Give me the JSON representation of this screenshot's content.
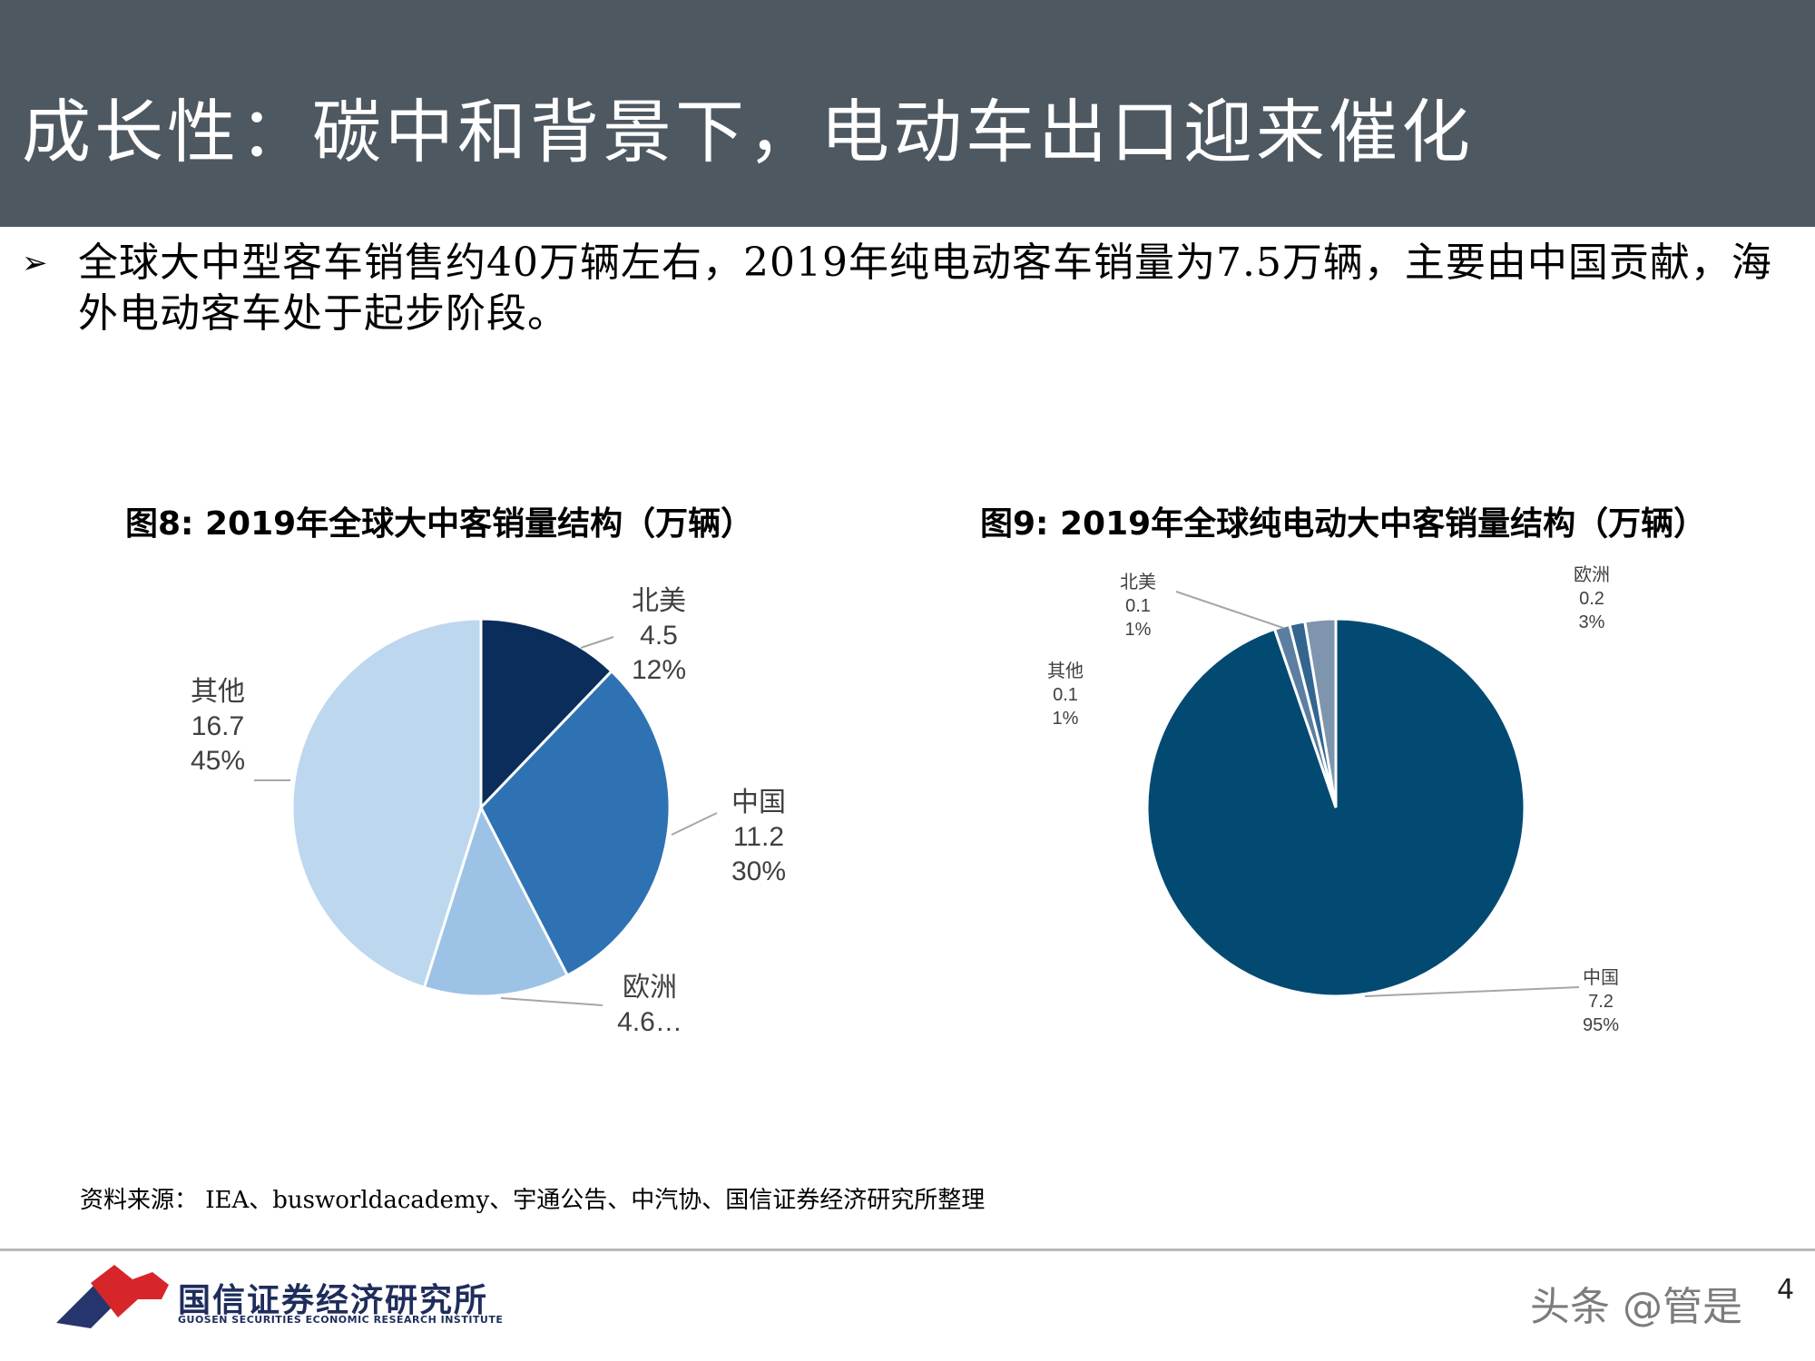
{
  "header": {
    "title": "成长性：碳中和背景下，电动车出口迎来催化"
  },
  "bullet": {
    "icon": "➢",
    "text": "全球大中型客车销售约40万辆左右，2019年纯电动客车销量为7.5万辆，主要由中国贡献，海外电动客车处于起步阶段。"
  },
  "charts": {
    "chart1_title": "图8:   2019年全球大中客销量结构（万辆）",
    "chart2_title": "图9:   2019年全球纯电动大中客销量结构（万辆）"
  },
  "chart_data": [
    {
      "type": "pie",
      "title": "2019年全球大中客销量结构（万辆）",
      "slices": [
        {
          "name": "北美",
          "value": 4.5,
          "value_label": "4.5",
          "pct_label": "12%",
          "color": "#0b2d5b"
        },
        {
          "name": "中国",
          "value": 11.2,
          "value_label": "11.2",
          "pct_label": "30%",
          "color": "#2e72b4"
        },
        {
          "name": "欧洲",
          "value": 4.6,
          "value_label": "4.6…",
          "pct_label": "",
          "color": "#9cc3e5"
        },
        {
          "name": "其他",
          "value": 16.7,
          "value_label": "16.7",
          "pct_label": "45%",
          "color": "#bdd7ee"
        }
      ]
    },
    {
      "type": "pie",
      "title": "2019年全球纯电动大中客销量结构（万辆）",
      "slices": [
        {
          "name": "中国",
          "value": 7.2,
          "value_label": "7.2",
          "pct_label": "95%",
          "color": "#034a73"
        },
        {
          "name": "其他",
          "value": 0.1,
          "value_label": "0.1",
          "pct_label": "1%",
          "color": "#5b7ea1"
        },
        {
          "name": "北美",
          "value": 0.1,
          "value_label": "0.1",
          "pct_label": "1%",
          "color": "#34658f"
        },
        {
          "name": "欧洲",
          "value": 0.2,
          "value_label": "0.2",
          "pct_label": "3%",
          "color": "#7f95ad"
        }
      ]
    }
  ],
  "source": {
    "text": "资料来源：   IEA、busworldacademy、宇通公告、中汽协、国信证券经济研究所整理"
  },
  "footer": {
    "logo_cn": "国信证券经济研究所",
    "logo_en": "GUOSEN SECURITIES ECONOMIC RESEARCH INSTITUTE",
    "page_number": "4",
    "watermark": "头条 @管是"
  }
}
